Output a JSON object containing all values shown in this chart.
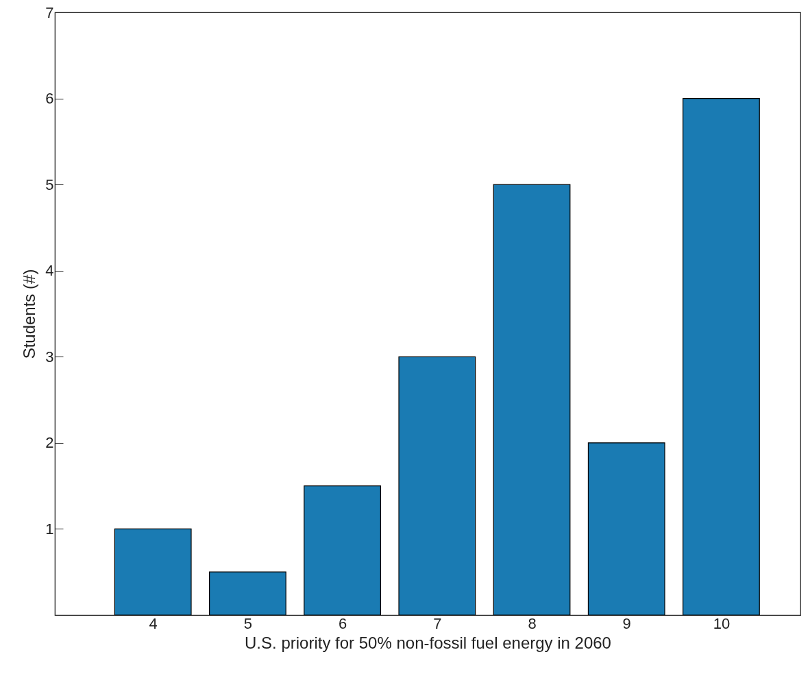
{
  "chart_data": {
    "type": "bar",
    "xlabel": "U.S. priority for 50% non-fossil fuel energy in 2060",
    "ylabel": "Students (#)",
    "x": [
      4,
      5,
      6,
      7,
      8,
      9,
      10
    ],
    "values": [
      1,
      0.5,
      1.5,
      3,
      5,
      2,
      6
    ],
    "color": "#1a7bb3",
    "xlim": [
      3,
      10.8
    ],
    "xticks": [
      4,
      5,
      6,
      7,
      8,
      9,
      10
    ],
    "ylim": [
      0,
      7
    ],
    "yticks": [
      1,
      2,
      3,
      4,
      5,
      6,
      7
    ],
    "grid": false
  }
}
